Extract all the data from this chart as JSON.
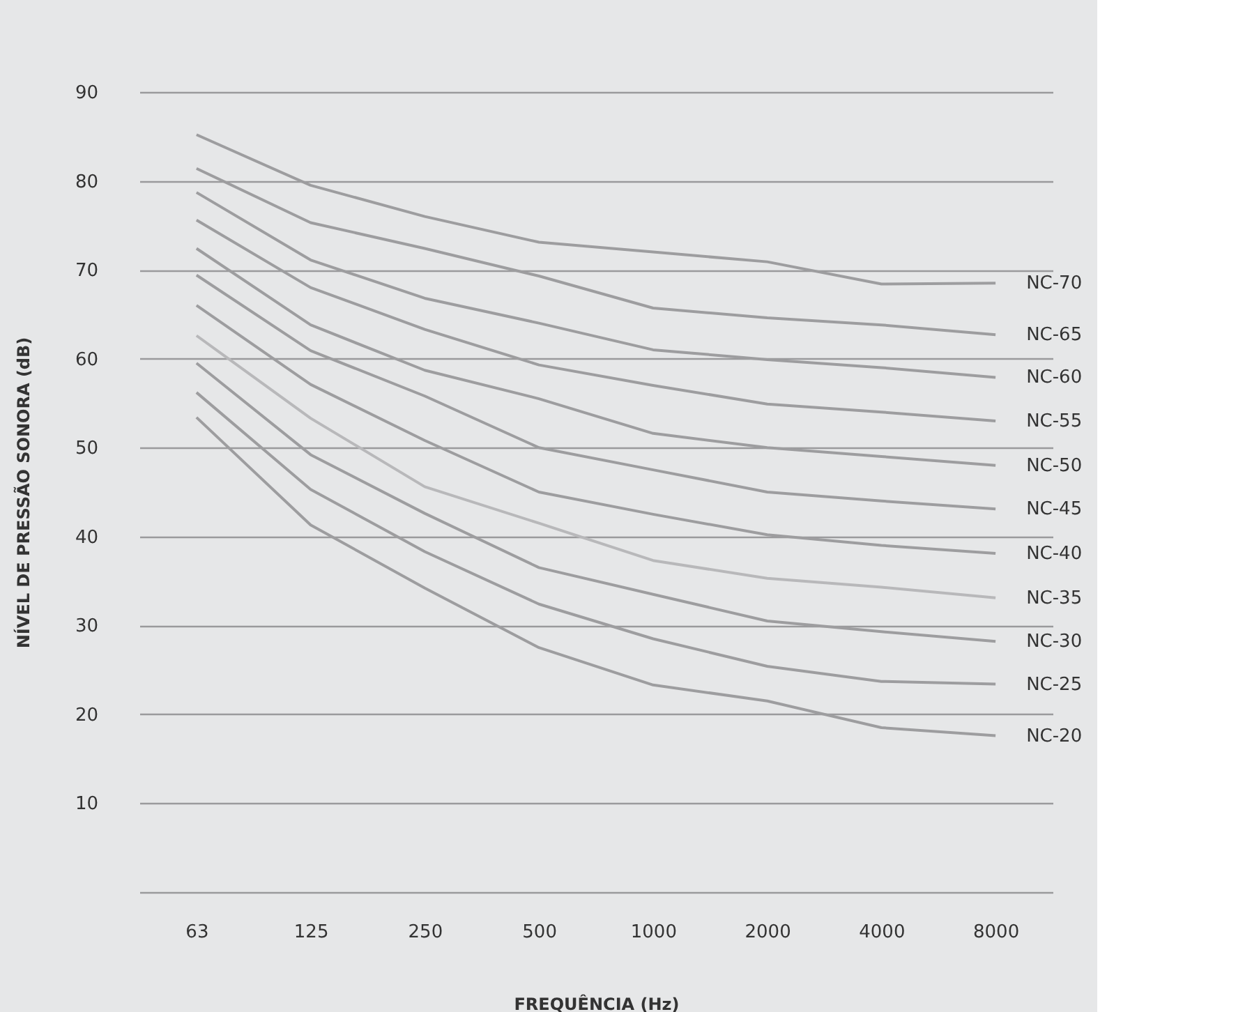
{
  "chart_data": {
    "type": "line",
    "xlabel": "FREQUÊNCIA (Hz)",
    "ylabel": "NÍVEL DE PRESSÃO SONORA (dB)",
    "categories": [
      "63",
      "125",
      "250",
      "500",
      "1000",
      "2000",
      "4000",
      "8000"
    ],
    "ylim": [
      0,
      90
    ],
    "yticks": [
      {
        "value": 0,
        "label": null
      },
      10,
      20,
      30,
      40,
      50,
      60,
      70,
      80,
      90
    ],
    "grid": "y",
    "legend": false,
    "marker": "none",
    "line_style": "solid",
    "series": [
      {
        "name": "NC-70",
        "color": "#9d9d9f",
        "values": [
          85.2,
          79.5,
          76.0,
          73.1,
          72.0,
          70.9,
          68.4,
          68.5
        ]
      },
      {
        "name": "NC-65",
        "color": "#9d9d9f",
        "values": [
          81.4,
          75.3,
          72.4,
          69.3,
          65.7,
          64.6,
          63.8,
          62.7
        ]
      },
      {
        "name": "NC-60",
        "color": "#9d9d9f",
        "values": [
          78.7,
          71.1,
          66.8,
          64.0,
          61.0,
          59.9,
          59.0,
          57.9
        ]
      },
      {
        "name": "NC-55",
        "color": "#9d9d9f",
        "values": [
          75.6,
          68.0,
          63.3,
          59.3,
          57.0,
          54.9,
          54.0,
          53.0
        ]
      },
      {
        "name": "NC-50",
        "color": "#9d9d9f",
        "values": [
          72.4,
          63.8,
          58.7,
          55.5,
          51.6,
          50.0,
          49.0,
          48.0
        ]
      },
      {
        "name": "NC-45",
        "color": "#9d9d9f",
        "values": [
          69.4,
          60.9,
          55.8,
          50.0,
          47.5,
          45.0,
          44.0,
          43.1
        ]
      },
      {
        "name": "NC-40",
        "color": "#9d9d9f",
        "values": [
          66.0,
          57.1,
          50.8,
          45.0,
          42.5,
          40.2,
          39.0,
          38.1
        ]
      },
      {
        "name": "NC-35",
        "color": "#b8b8ba",
        "values": [
          62.6,
          53.3,
          45.6,
          41.5,
          37.3,
          35.3,
          34.3,
          33.1
        ]
      },
      {
        "name": "NC-30",
        "color": "#9d9d9f",
        "values": [
          59.5,
          49.2,
          42.6,
          36.5,
          33.5,
          30.5,
          29.3,
          28.2
        ]
      },
      {
        "name": "NC-25",
        "color": "#9d9d9f",
        "values": [
          56.2,
          45.3,
          38.3,
          32.4,
          28.5,
          25.4,
          23.7,
          23.4
        ]
      },
      {
        "name": "NC-20",
        "color": "#9d9d9f",
        "values": [
          53.4,
          41.3,
          34.2,
          27.5,
          23.3,
          21.5,
          18.5,
          17.6
        ]
      }
    ]
  }
}
